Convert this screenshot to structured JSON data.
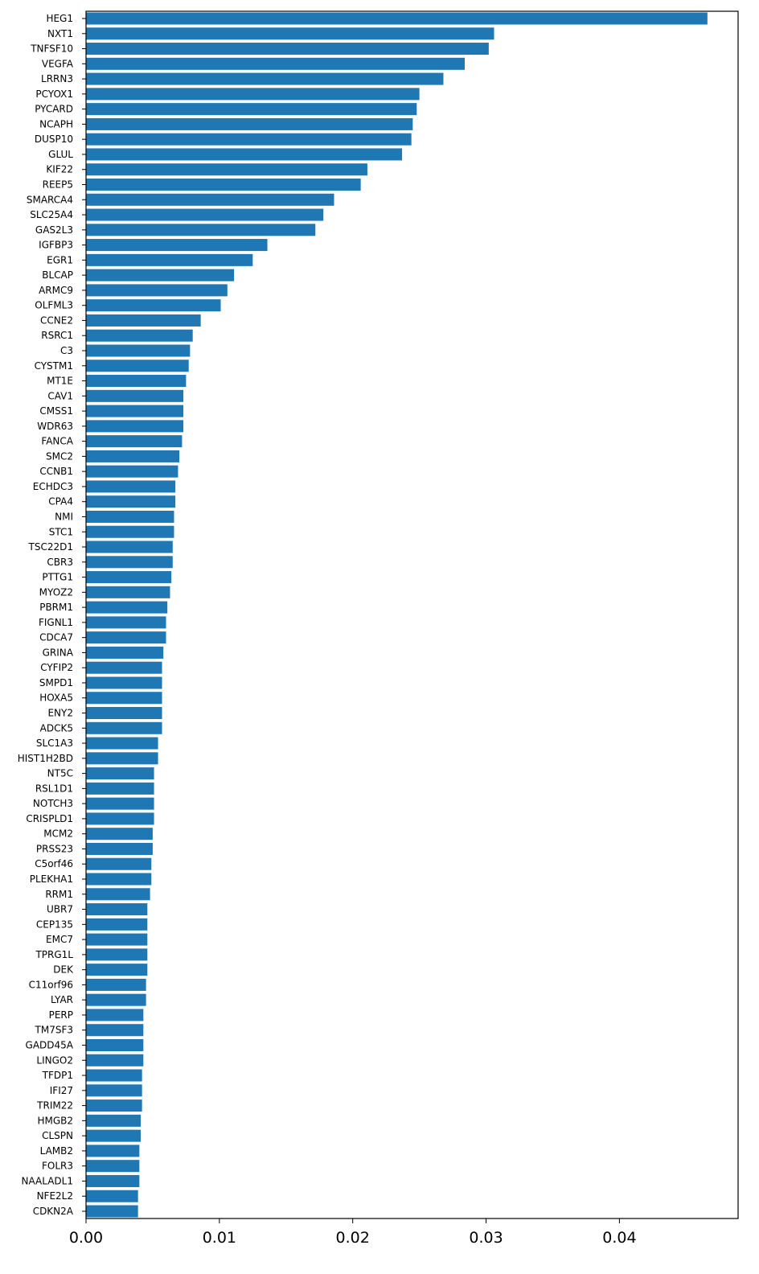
{
  "chart_data": {
    "type": "bar",
    "orientation": "horizontal",
    "color": "#1f77b4",
    "title": "",
    "xlabel": "",
    "ylabel": "",
    "xlim": [
      0,
      0.0489
    ],
    "xticks": [
      0.0,
      0.01,
      0.02,
      0.03,
      0.04
    ],
    "xtick_labels": [
      "0.00",
      "0.01",
      "0.02",
      "0.03",
      "0.04"
    ],
    "grid": false,
    "legend": false,
    "categories": [
      "HEG1",
      "NXT1",
      "TNFSF10",
      "VEGFA",
      "LRRN3",
      "PCYOX1",
      "PYCARD",
      "NCAPH",
      "DUSP10",
      "GLUL",
      "KIF22",
      "REEP5",
      "SMARCA4",
      "SLC25A4",
      "GAS2L3",
      "IGFBP3",
      "EGR1",
      "BLCAP",
      "ARMC9",
      "OLFML3",
      "CCNE2",
      "RSRC1",
      "C3",
      "CYSTM1",
      "MT1E",
      "CAV1",
      "CMSS1",
      "WDR63",
      "FANCA",
      "SMC2",
      "CCNB1",
      "ECHDC3",
      "CPA4",
      "NMI",
      "STC1",
      "TSC22D1",
      "CBR3",
      "PTTG1",
      "MYOZ2",
      "PBRM1",
      "FIGNL1",
      "CDCA7",
      "GRINA",
      "CYFIP2",
      "SMPD1",
      "HOXA5",
      "ENY2",
      "ADCK5",
      "SLC1A3",
      "HIST1H2BD",
      "NT5C",
      "RSL1D1",
      "NOTCH3",
      "CRISPLD1",
      "MCM2",
      "PRSS23",
      "C5orf46",
      "PLEKHA1",
      "RRM1",
      "UBR7",
      "CEP135",
      "EMC7",
      "TPRG1L",
      "DEK",
      "C11orf96",
      "LYAR",
      "PERP",
      "TM7SF3",
      "GADD45A",
      "LINGO2",
      "TFDP1",
      "IFI27",
      "TRIM22",
      "HMGB2",
      "CLSPN",
      "LAMB2",
      "FOLR3",
      "NAALADL1",
      "NFE2L2",
      "CDKN2A"
    ],
    "values": [
      0.0466,
      0.0306,
      0.0302,
      0.0284,
      0.0268,
      0.025,
      0.0248,
      0.0245,
      0.0244,
      0.0237,
      0.0211,
      0.0206,
      0.0186,
      0.0178,
      0.0172,
      0.0136,
      0.0125,
      0.0111,
      0.0106,
      0.0101,
      0.0086,
      0.008,
      0.0078,
      0.0077,
      0.0075,
      0.0073,
      0.0073,
      0.0073,
      0.0072,
      0.007,
      0.0069,
      0.0067,
      0.0067,
      0.0066,
      0.0066,
      0.0065,
      0.0065,
      0.0064,
      0.0063,
      0.0061,
      0.006,
      0.006,
      0.0058,
      0.0057,
      0.0057,
      0.0057,
      0.0057,
      0.0057,
      0.0054,
      0.0054,
      0.0051,
      0.0051,
      0.0051,
      0.0051,
      0.005,
      0.005,
      0.0049,
      0.0049,
      0.0048,
      0.0046,
      0.0046,
      0.0046,
      0.0046,
      0.0046,
      0.0045,
      0.0045,
      0.0043,
      0.0043,
      0.0043,
      0.0043,
      0.0042,
      0.0042,
      0.0042,
      0.0041,
      0.0041,
      0.004,
      0.004,
      0.004,
      0.0039,
      0.0039
    ]
  }
}
